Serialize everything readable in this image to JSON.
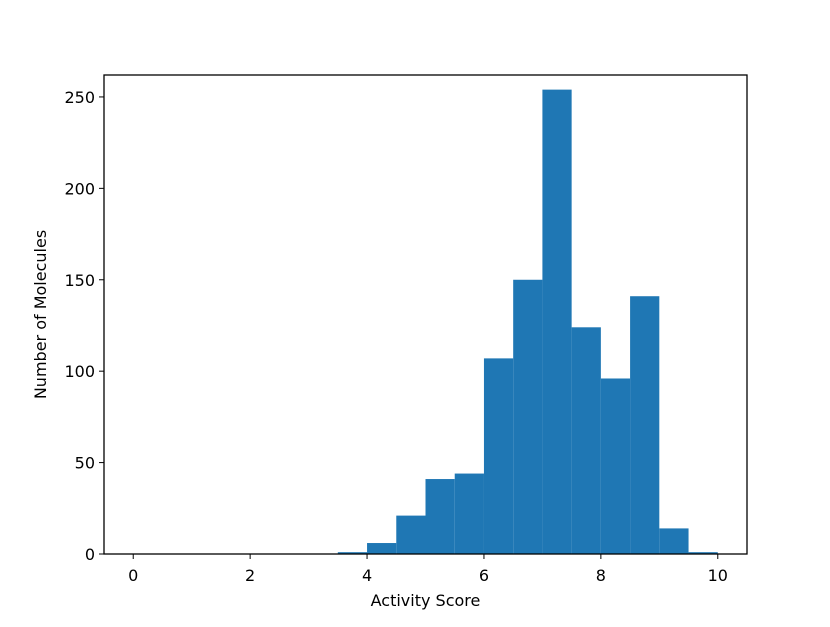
{
  "chart_data": {
    "type": "bar",
    "subtype": "histogram",
    "title": "",
    "xlabel": "Activity Score",
    "ylabel": "Number of Molecules",
    "xlim": [
      -0.5,
      10.5
    ],
    "ylim": [
      0,
      262
    ],
    "xticks": [
      0,
      2,
      4,
      6,
      8,
      10
    ],
    "yticks": [
      0,
      50,
      100,
      150,
      200,
      250
    ],
    "bin_width": 0.5,
    "bins": [
      {
        "x0": 0.0,
        "x1": 0.5,
        "count": 0
      },
      {
        "x0": 0.5,
        "x1": 1.0,
        "count": 0
      },
      {
        "x0": 1.0,
        "x1": 1.5,
        "count": 0
      },
      {
        "x0": 1.5,
        "x1": 2.0,
        "count": 0
      },
      {
        "x0": 2.0,
        "x1": 2.5,
        "count": 0
      },
      {
        "x0": 2.5,
        "x1": 3.0,
        "count": 0
      },
      {
        "x0": 3.0,
        "x1": 3.5,
        "count": 0
      },
      {
        "x0": 3.5,
        "x1": 4.0,
        "count": 1
      },
      {
        "x0": 4.0,
        "x1": 4.5,
        "count": 6
      },
      {
        "x0": 4.5,
        "x1": 5.0,
        "count": 21
      },
      {
        "x0": 5.0,
        "x1": 5.5,
        "count": 41
      },
      {
        "x0": 5.5,
        "x1": 6.0,
        "count": 44
      },
      {
        "x0": 6.0,
        "x1": 6.5,
        "count": 107
      },
      {
        "x0": 6.5,
        "x1": 7.0,
        "count": 150
      },
      {
        "x0": 7.0,
        "x1": 7.5,
        "count": 254
      },
      {
        "x0": 7.5,
        "x1": 8.0,
        "count": 124
      },
      {
        "x0": 8.0,
        "x1": 8.5,
        "count": 96
      },
      {
        "x0": 8.5,
        "x1": 9.0,
        "count": 141
      },
      {
        "x0": 9.0,
        "x1": 9.5,
        "count": 14
      },
      {
        "x0": 9.5,
        "x1": 10.0,
        "count": 1
      }
    ],
    "bar_color": "#1f77b4",
    "grid": false,
    "legend": "none"
  }
}
